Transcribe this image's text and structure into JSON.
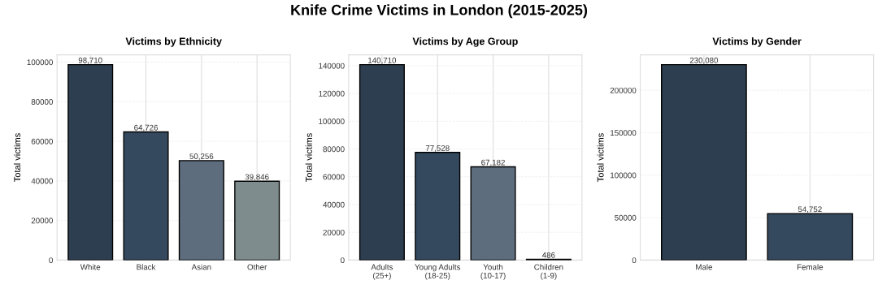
{
  "chart_data": [
    {
      "type": "other",
      "title": "Knife Crime Victims in London (2015-2025)"
    },
    {
      "type": "bar",
      "title": "Victims by Ethnicity",
      "ylabel": "Total victims",
      "categories": [
        "White",
        "Black",
        "Asian",
        "Other"
      ],
      "values": [
        98710,
        64726,
        50256,
        39846
      ],
      "colors": [
        "#2c3e50",
        "#34495e",
        "#5d6d7e",
        "#7f8c8d"
      ],
      "ylim": [
        0,
        103646
      ],
      "yticks": [
        0,
        20000,
        40000,
        60000,
        80000,
        100000
      ],
      "grid": true,
      "value_labels": [
        "98,710",
        "64,726",
        "50,256",
        "39,846"
      ]
    },
    {
      "type": "bar",
      "title": "Victims by Age Group",
      "ylabel": "Total victims",
      "categories": [
        "Adults\n(25+)",
        "Young Adults\n(18-25)",
        "Youth\n(10-17)",
        "Children\n(1-9)"
      ],
      "values": [
        140710,
        77528,
        67182,
        486
      ],
      "colors": [
        "#2c3e50",
        "#34495e",
        "#5d6d7e",
        "#7f8c8d"
      ],
      "ylim": [
        0,
        147746
      ],
      "yticks": [
        0,
        20000,
        40000,
        60000,
        80000,
        100000,
        120000,
        140000
      ],
      "grid": true,
      "value_labels": [
        "140,710",
        "77,528",
        "67,182",
        "486"
      ]
    },
    {
      "type": "bar",
      "title": "Victims by Gender",
      "ylabel": "Total victims",
      "categories": [
        "Male",
        "Female"
      ],
      "values": [
        230080,
        54752
      ],
      "colors": [
        "#2c3e50",
        "#34495e"
      ],
      "ylim": [
        0,
        241584
      ],
      "yticks": [
        0,
        50000,
        100000,
        150000,
        200000
      ],
      "grid": true,
      "value_labels": [
        "230,080",
        "54,752"
      ]
    }
  ]
}
